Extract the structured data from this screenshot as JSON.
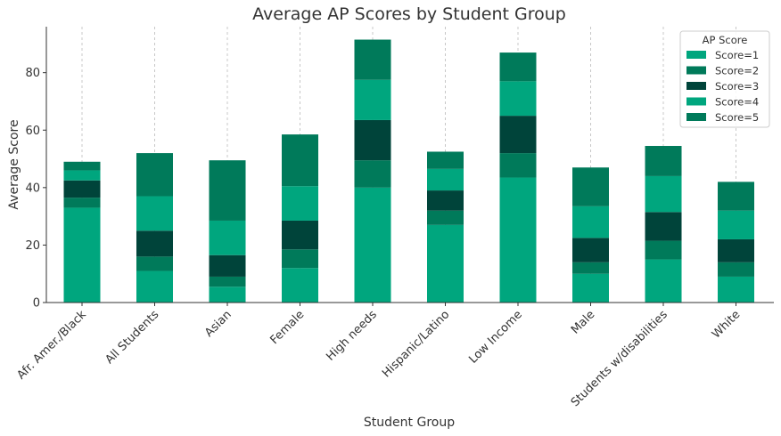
{
  "chart_data": {
    "type": "bar",
    "stacked": true,
    "title": "Average AP Scores by Student Group",
    "xlabel": "Student Group",
    "ylabel": "Average Score",
    "ylim": [
      0,
      96
    ],
    "yticks": [
      0,
      20,
      40,
      60,
      80
    ],
    "grid": "x-dashed",
    "legend": {
      "title": "AP Score",
      "placement": "top-right"
    },
    "categories": [
      "Afr. Amer./Black",
      "All Students",
      "Asian",
      "Female",
      "High needs",
      "Hispanic/Latino",
      "Low Income",
      "Male",
      "Students w/disabilities",
      "White"
    ],
    "series": [
      {
        "name": "Score=1",
        "color": "#00a67e",
        "values": [
          33.0,
          11.0,
          5.5,
          12.0,
          40.0,
          27.0,
          43.5,
          10.0,
          15.0,
          9.0
        ]
      },
      {
        "name": "Score=2",
        "color": "#007a5a",
        "values": [
          3.5,
          5.0,
          3.5,
          6.5,
          9.5,
          5.0,
          8.5,
          4.0,
          6.5,
          5.0
        ]
      },
      {
        "name": "Score=3",
        "color": "#00443a",
        "values": [
          6.0,
          9.0,
          7.5,
          10.0,
          14.0,
          7.0,
          13.0,
          8.5,
          10.0,
          8.0
        ]
      },
      {
        "name": "Score=4",
        "color": "#00a67e",
        "values": [
          3.5,
          12.0,
          12.0,
          12.0,
          14.0,
          7.5,
          12.0,
          11.0,
          12.5,
          10.0
        ]
      },
      {
        "name": "Score=5",
        "color": "#007a5a",
        "values": [
          3.0,
          15.0,
          21.0,
          18.0,
          14.0,
          6.0,
          10.0,
          13.5,
          10.5,
          10.0
        ]
      }
    ]
  }
}
